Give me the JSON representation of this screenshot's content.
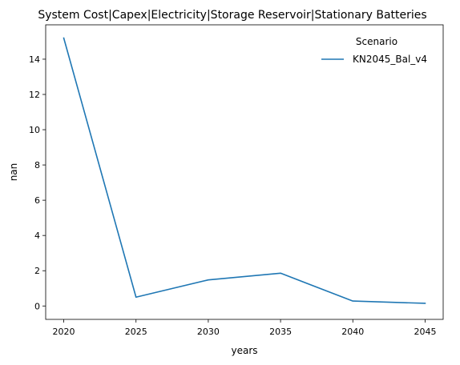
{
  "chart_data": {
    "type": "line",
    "title": "System Cost|Capex|Electricity|Storage Reservoir|Stationary Batteries",
    "xlabel": "years",
    "ylabel": "nan",
    "x": [
      2020,
      2025,
      2030,
      2035,
      2040,
      2045
    ],
    "x_ticks": [
      "2020",
      "2025",
      "2030",
      "2035",
      "2040",
      "2045"
    ],
    "y_ticks": [
      "0",
      "2",
      "4",
      "6",
      "8",
      "10",
      "12",
      "14"
    ],
    "ylim": [
      -0.76,
      15.95
    ],
    "xlim": [
      2018.75,
      2046.25
    ],
    "grid": false,
    "legend": {
      "title": "Scenario",
      "placement": "top-right"
    },
    "series": [
      {
        "name": "KN2045_Bal_v4",
        "color": "#1f77b4",
        "values": [
          15.2,
          0.5,
          1.48,
          1.86,
          0.28,
          0.15
        ]
      }
    ]
  }
}
